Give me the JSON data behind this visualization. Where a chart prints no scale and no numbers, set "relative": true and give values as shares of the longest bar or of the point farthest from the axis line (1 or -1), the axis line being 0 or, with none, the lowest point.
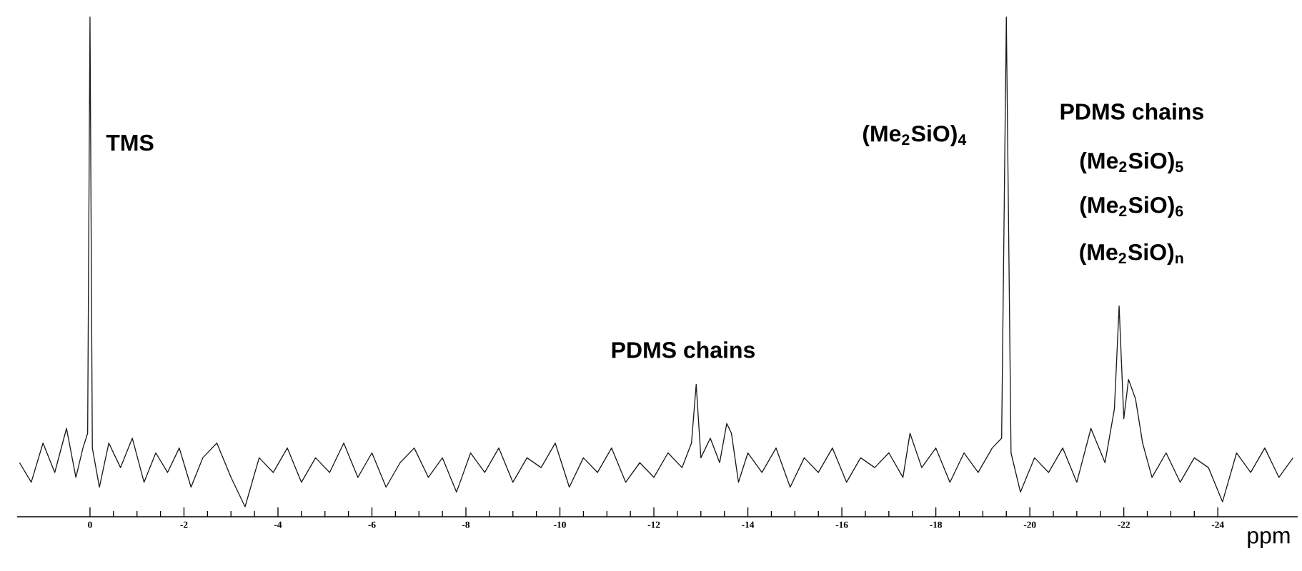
{
  "chart_data": {
    "type": "line",
    "relative": true,
    "xlabel": "ppm",
    "xlim": [
      1.55,
      -25.7
    ],
    "xticks": [
      0,
      -2,
      -4,
      -6,
      -8,
      -10,
      -12,
      -14,
      -16,
      -18,
      -20,
      -22,
      -24
    ],
    "marker": "none",
    "line_style": "solid",
    "grid": false,
    "annotations": [
      "TMS",
      "PDMS chains",
      "(Me$_{2}$SiO)$_{4}$",
      "PDMS chains",
      "(Me$_{2}$SiO)$_{5}$",
      "(Me$_{2}$SiO)$_{6}$",
      "(Me$_{2}$SiO)$_{n}$"
    ],
    "series": [
      {
        "color": "#1a1a1a",
        "x": [
          1.5,
          1.25,
          1.0,
          0.75,
          0.5,
          0.3,
          0.15,
          0.05,
          0,
          -0.05,
          -0.2,
          -0.4,
          -0.65,
          -0.9,
          -1.15,
          -1.4,
          -1.65,
          -1.9,
          -2.15,
          -2.4,
          -2.7,
          -3.0,
          -3.3,
          -3.6,
          -3.9,
          -4.2,
          -4.5,
          -4.8,
          -5.1,
          -5.4,
          -5.7,
          -6.0,
          -6.3,
          -6.6,
          -6.9,
          -7.2,
          -7.5,
          -7.8,
          -8.1,
          -8.4,
          -8.7,
          -9.0,
          -9.3,
          -9.6,
          -9.9,
          -10.2,
          -10.5,
          -10.8,
          -11.1,
          -11.4,
          -11.7,
          -12.0,
          -12.3,
          -12.6,
          -12.8,
          -12.9,
          -13.0,
          -13.2,
          -13.4,
          -13.55,
          -13.65,
          -13.8,
          -14.0,
          -14.3,
          -14.6,
          -14.9,
          -15.2,
          -15.5,
          -15.8,
          -16.1,
          -16.4,
          -16.7,
          -17.0,
          -17.3,
          -17.45,
          -17.7,
          -18.0,
          -18.3,
          -18.6,
          -18.9,
          -19.2,
          -19.4,
          -19.5,
          -19.6,
          -19.8,
          -20.1,
          -20.4,
          -20.7,
          -21.0,
          -21.3,
          -21.6,
          -21.8,
          -21.9,
          -22.0,
          -22.1,
          -22.25,
          -22.4,
          -22.6,
          -22.9,
          -23.2,
          -23.5,
          -23.8,
          -24.1,
          -24.4,
          -24.7,
          -25.0,
          -25.3,
          -25.6
        ],
        "values": [
          0.09,
          0.05,
          0.13,
          0.07,
          0.16,
          0.06,
          0.12,
          0.15,
          1,
          0.12,
          0.04,
          0.13,
          0.08,
          0.14,
          0.05,
          0.11,
          0.07,
          0.12,
          0.04,
          0.1,
          0.13,
          0.06,
          0,
          0.1,
          0.07,
          0.12,
          0.05,
          0.1,
          0.07,
          0.13,
          0.06,
          0.11,
          0.04,
          0.09,
          0.12,
          0.06,
          0.1,
          0.03,
          0.11,
          0.07,
          0.12,
          0.05,
          0.1,
          0.08,
          0.13,
          0.04,
          0.1,
          0.07,
          0.12,
          0.05,
          0.09,
          0.06,
          0.11,
          0.08,
          0.13,
          0.25,
          0.1,
          0.14,
          0.09,
          0.17,
          0.15,
          0.05,
          0.11,
          0.07,
          0.12,
          0.04,
          0.1,
          0.07,
          0.12,
          0.05,
          0.1,
          0.08,
          0.11,
          0.06,
          0.15,
          0.08,
          0.12,
          0.05,
          0.11,
          0.07,
          0.12,
          0.14,
          1,
          0.11,
          0.03,
          0.1,
          0.07,
          0.12,
          0.05,
          0.16,
          0.09,
          0.2,
          0.41,
          0.18,
          0.26,
          0.22,
          0.13,
          0.06,
          0.11,
          0.05,
          0.1,
          0.08,
          0.01,
          0.11,
          0.07,
          0.12,
          0.06,
          0.1
        ]
      }
    ]
  }
}
